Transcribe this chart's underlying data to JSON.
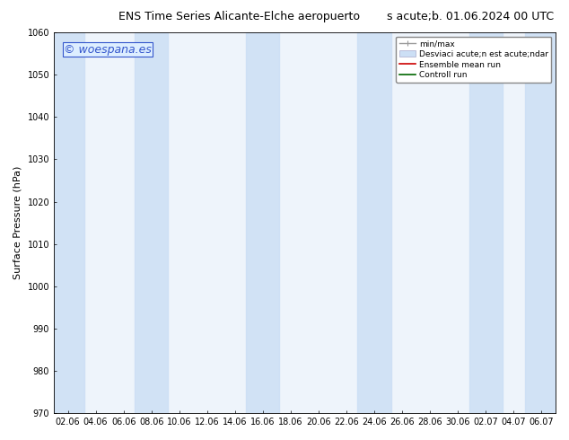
{
  "title": "ENS Time Series Alicante-Elche aeropuerto",
  "title_right": "s acute;b. 01.06.2024 00 UTC",
  "ylabel": "Surface Pressure (hPa)",
  "watermark": "© woespana.es",
  "ylim": [
    970,
    1060
  ],
  "yticks": [
    970,
    980,
    990,
    1000,
    1010,
    1020,
    1030,
    1040,
    1050,
    1060
  ],
  "xtick_labels": [
    "02.06",
    "04.06",
    "06.06",
    "08.06",
    "10.06",
    "12.06",
    "14.06",
    "16.06",
    "18.06",
    "20.06",
    "22.06",
    "24.06",
    "26.06",
    "28.06",
    "30.06",
    "02.07",
    "04.07",
    "06.07"
  ],
  "bg_color": "#ffffff",
  "plot_bg_color": "#eef4fb",
  "shaded_band_color": "#ccdff5",
  "shaded_band_alpha": 0.85,
  "shaded_x_indices": [
    0,
    1,
    3,
    4,
    7,
    8,
    11,
    12,
    14,
    15,
    17
  ],
  "legend_label_minmax": "min/max",
  "legend_label_std": "Desviaci acute;n est acute;ndar",
  "legend_label_ens": "Ensemble mean run",
  "legend_label_ctrl": "Controll run",
  "title_fontsize": 9,
  "tick_fontsize": 7,
  "ylabel_fontsize": 8,
  "watermark_color": "#3355cc",
  "watermark_fontsize": 9
}
